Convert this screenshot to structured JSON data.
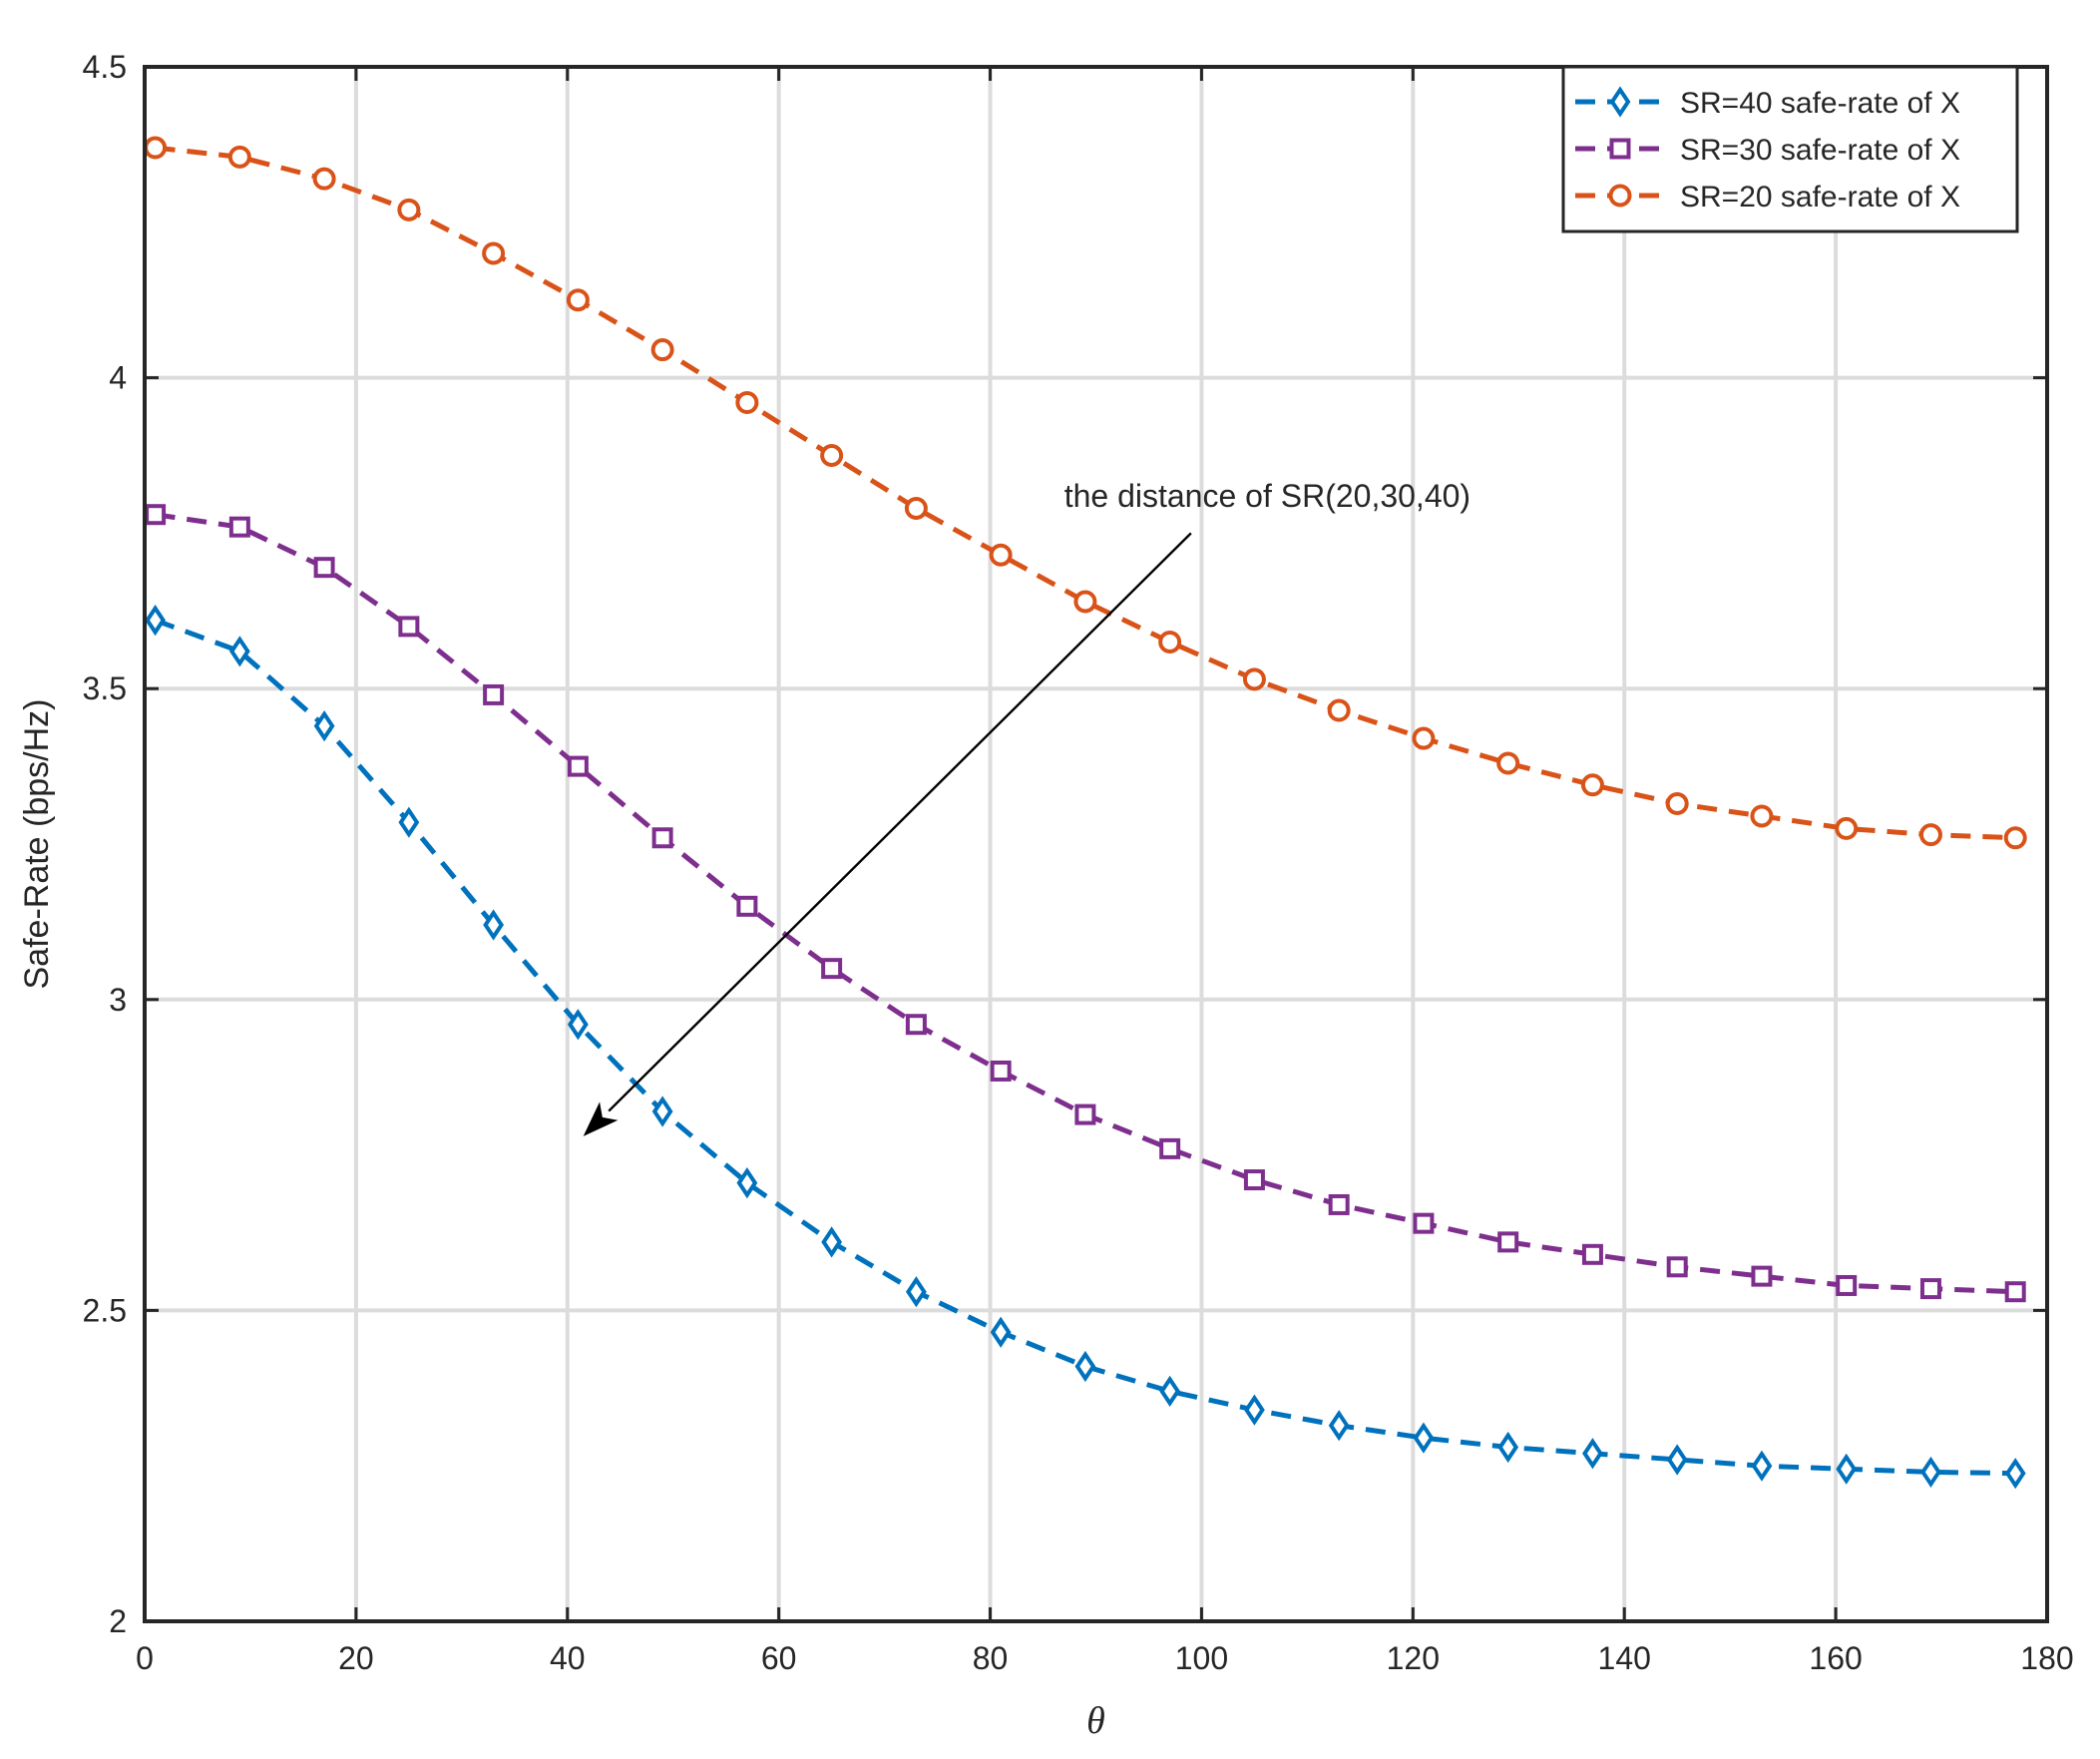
{
  "chart_data": {
    "type": "line",
    "xlabel": "θ",
    "ylabel": "Safe-Rate (bps/Hz)",
    "xlim": [
      0,
      180
    ],
    "ylim": [
      2,
      4.5
    ],
    "xticks": [
      0,
      20,
      40,
      60,
      80,
      100,
      120,
      140,
      160,
      180
    ],
    "yticks": [
      2,
      2.5,
      3,
      3.5,
      4,
      4.5
    ],
    "xtick_labels": [
      "0",
      "20",
      "40",
      "60",
      "80",
      "100",
      "120",
      "140",
      "160",
      "180"
    ],
    "ytick_labels": [
      "2",
      "2.5",
      "3",
      "3.5",
      "4",
      "4.5"
    ],
    "grid": true,
    "legend_position": "top-right",
    "x": [
      1,
      9,
      17,
      25,
      33,
      41,
      49,
      57,
      65,
      73,
      81,
      89,
      97,
      105,
      113,
      121,
      129,
      137,
      145,
      153,
      161,
      169,
      177
    ],
    "series": [
      {
        "name": "SR=40 safe-rate of X",
        "color": "#0072BD",
        "marker": "diamond",
        "line_style": "dashed",
        "values": [
          3.61,
          3.56,
          3.44,
          3.285,
          3.12,
          2.96,
          2.82,
          2.705,
          2.61,
          2.53,
          2.465,
          2.41,
          2.37,
          2.34,
          2.315,
          2.295,
          2.28,
          2.27,
          2.26,
          2.25,
          2.245,
          2.24,
          2.238
        ]
      },
      {
        "name": "SR=30 safe-rate of X",
        "color": "#7E2F8E",
        "marker": "square",
        "line_style": "dashed",
        "values": [
          3.78,
          3.76,
          3.695,
          3.6,
          3.49,
          3.375,
          3.26,
          3.15,
          3.05,
          2.96,
          2.885,
          2.815,
          2.76,
          2.71,
          2.67,
          2.64,
          2.61,
          2.59,
          2.57,
          2.555,
          2.54,
          2.535,
          2.53
        ]
      },
      {
        "name": "SR=20 safe-rate of X",
        "color": "#D95319",
        "marker": "circle",
        "line_style": "dashed",
        "values": [
          4.37,
          4.355,
          4.32,
          4.27,
          4.2,
          4.125,
          4.045,
          3.96,
          3.875,
          3.79,
          3.715,
          3.64,
          3.575,
          3.515,
          3.465,
          3.42,
          3.38,
          3.345,
          3.315,
          3.295,
          3.275,
          3.265,
          3.26
        ]
      }
    ],
    "annotations": [
      {
        "text": "the distance of SR(20,30,40)",
        "text_anchor": {
          "x": 87,
          "y": 3.81
        },
        "arrow_from": {
          "x": 99,
          "y": 3.75
        },
        "arrow_to": {
          "x": 41.5,
          "y": 2.78
        }
      }
    ]
  }
}
